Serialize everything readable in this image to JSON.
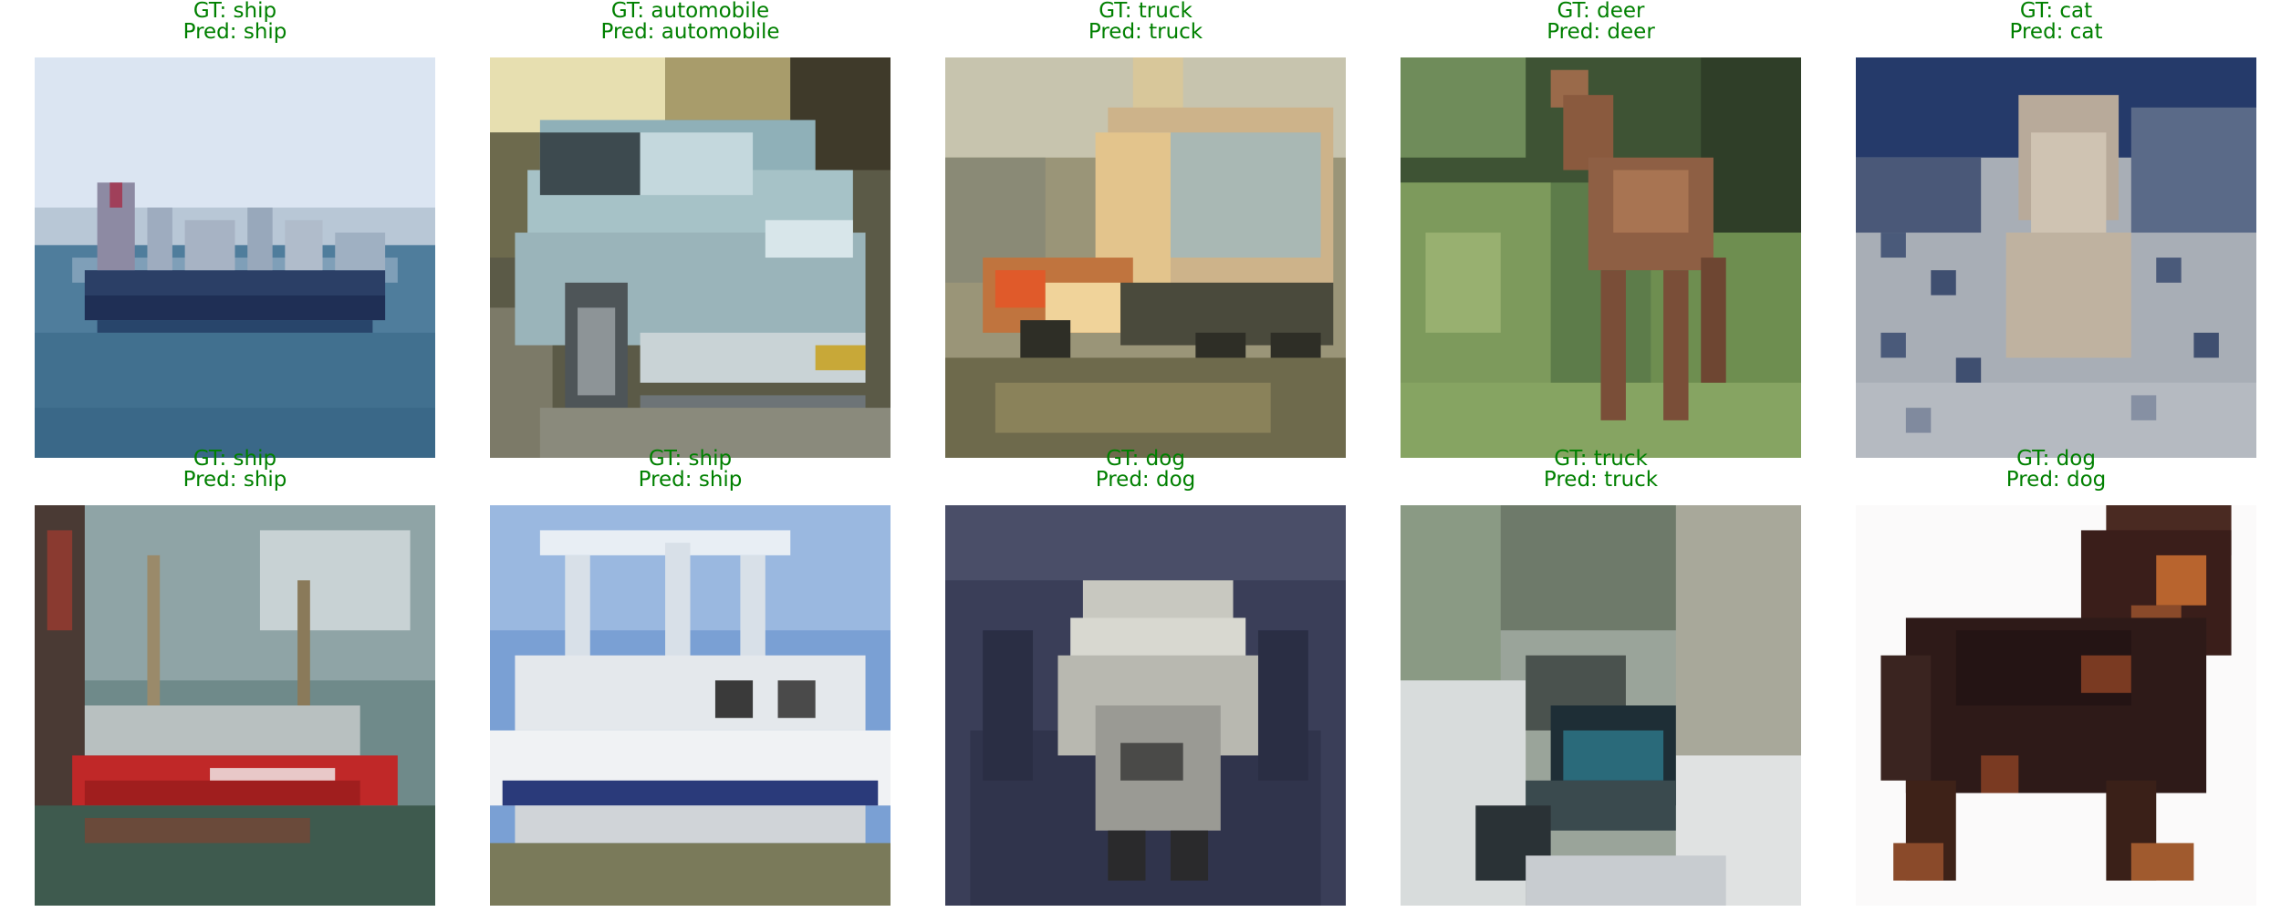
{
  "panels": [
    {
      "gt": "GT: ship",
      "pred": "Pred: ship",
      "scene": "ship-sea"
    },
    {
      "gt": "GT: automobile",
      "pred": "Pred: automobile",
      "scene": "car-silver"
    },
    {
      "gt": "GT: truck",
      "pred": "Pred: truck",
      "scene": "truck-yard"
    },
    {
      "gt": "GT: deer",
      "pred": "Pred: deer",
      "scene": "deer-grass"
    },
    {
      "gt": "GT: cat",
      "pred": "Pred: cat",
      "scene": "cat-pattern"
    },
    {
      "gt": "GT: ship",
      "pred": "Pred: ship",
      "scene": "ship-red"
    },
    {
      "gt": "GT: ship",
      "pred": "Pred: ship",
      "scene": "boat-white"
    },
    {
      "gt": "GT: dog",
      "pred": "Pred: dog",
      "scene": "dog-white"
    },
    {
      "gt": "GT: truck",
      "pred": "Pred: truck",
      "scene": "truck-street"
    },
    {
      "gt": "GT: dog",
      "pred": "Pred: dog",
      "scene": "dog-black"
    }
  ],
  "colors": {
    "title": "#008000"
  }
}
